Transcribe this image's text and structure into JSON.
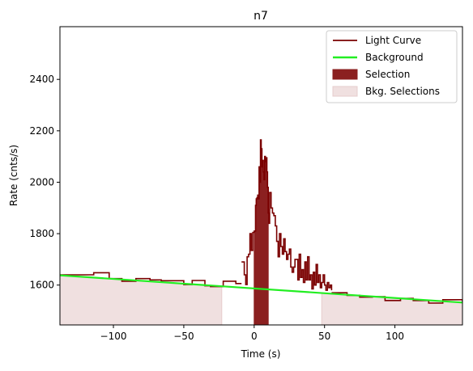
{
  "chart_data": {
    "type": "line",
    "title": "n7",
    "xlabel": "Time (s)",
    "ylabel": "Rate (cnts/s)",
    "xlim": [
      -138,
      148
    ],
    "ylim": [
      1445,
      2605
    ],
    "xticks": [
      -100,
      -50,
      0,
      50,
      100
    ],
    "yticks": [
      1600,
      1800,
      2000,
      2200,
      2400
    ],
    "grid": false,
    "legend_position": "top-right",
    "legend": [
      {
        "label": "Light Curve",
        "kind": "line",
        "color": "#7a0000"
      },
      {
        "label": "Background",
        "kind": "line",
        "color": "#22ee22"
      },
      {
        "label": "Selection",
        "kind": "patch",
        "color": "#8b2020"
      },
      {
        "label": "Bkg. Selections",
        "kind": "patch",
        "color": "#f0e0e0"
      }
    ],
    "colors": {
      "light_curve": "#7a0000",
      "background": "#22ee22",
      "selection": "#8b2020",
      "bkg_selection": "#f0e0e0",
      "bkg_selection_edge": "#e6cccc"
    },
    "background_line": {
      "x": [
        -138,
        148
      ],
      "y": [
        1638,
        1532
      ]
    },
    "selection_range": [
      0,
      10
    ],
    "bkg_selection_ranges": [
      [
        -138,
        -23
      ],
      [
        48,
        148
      ]
    ],
    "light_curve_segments": [
      {
        "x": [
          -138,
          -123,
          -114,
          -103,
          -94,
          -84,
          -74,
          -66,
          -54,
          -50,
          -44,
          -35,
          -31,
          -22,
          -13,
          -9
        ],
        "y": [
          1640,
          1640,
          1648,
          1625,
          1615,
          1625,
          1620,
          1617,
          1617,
          1602,
          1618,
          1597,
          1594,
          1615,
          1606,
          1606
        ]
      },
      {
        "x": [
          -9,
          -7,
          -6,
          -5,
          -4,
          -3,
          -2,
          -1,
          0,
          1,
          1.5,
          2,
          2.5,
          3,
          3.5,
          4,
          4.5,
          5,
          5.5,
          6,
          6.5,
          7,
          7.5,
          8,
          8.5,
          9,
          9.5,
          10,
          10.5,
          11,
          12,
          13,
          14,
          15,
          16,
          17,
          18,
          19,
          20,
          21,
          22,
          23,
          24,
          25,
          26,
          27,
          28,
          29,
          30,
          31,
          32,
          33,
          34,
          35,
          36,
          37,
          38,
          39,
          40,
          41,
          42,
          43,
          44,
          45,
          46,
          47,
          48,
          49,
          50,
          51,
          52,
          53,
          54,
          55
        ],
        "y": [
          1690,
          1640,
          1602,
          1710,
          1720,
          1800,
          1735,
          1805,
          1810,
          1910,
          1935,
          1940,
          1950,
          1935,
          2060,
          2000,
          2165,
          2130,
          2060,
          2085,
          2040,
          2010,
          2100,
          2080,
          2095,
          2040,
          1980,
          1880,
          1840,
          1960,
          1900,
          1880,
          1870,
          1830,
          1770,
          1710,
          1800,
          1750,
          1720,
          1780,
          1730,
          1700,
          1720,
          1740,
          1670,
          1650,
          1670,
          1700,
          1700,
          1620,
          1720,
          1630,
          1660,
          1610,
          1690,
          1620,
          1710,
          1620,
          1640,
          1585,
          1650,
          1600,
          1680,
          1610,
          1640,
          1590,
          1610,
          1640,
          1600,
          1580,
          1610,
          1590,
          1600,
          1580
        ]
      },
      {
        "x": [
          55,
          66,
          75,
          84,
          93,
          104,
          113,
          124,
          134,
          148
        ],
        "y": [
          1570,
          1560,
          1553,
          1555,
          1540,
          1548,
          1540,
          1530,
          1543,
          1530
        ]
      }
    ]
  }
}
